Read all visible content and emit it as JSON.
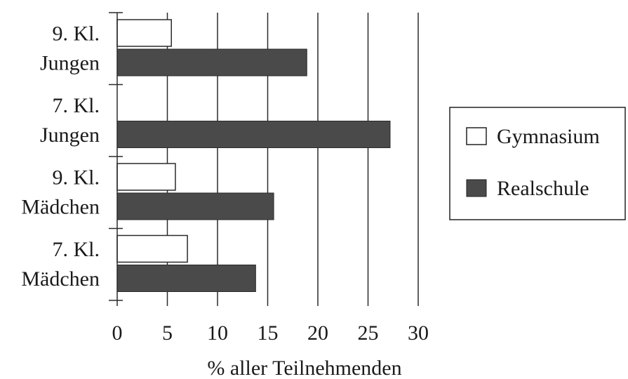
{
  "chart_data": {
    "type": "bar",
    "orientation": "horizontal",
    "categories": [
      [
        "9. Kl.",
        "Jungen"
      ],
      [
        "7. Kl.",
        "Jungen"
      ],
      [
        "9. Kl.",
        "Mädchen"
      ],
      [
        "7. Kl.",
        "Mädchen"
      ]
    ],
    "series": [
      {
        "name": "Gymnasium",
        "color": "#ffffff",
        "values": [
          5.4,
          0,
          5.8,
          7.0
        ]
      },
      {
        "name": "Realschule",
        "color": "#4a4a4a",
        "values": [
          18.9,
          27.2,
          15.6,
          13.8
        ]
      }
    ],
    "xlabel": "% aller Teilnehmenden",
    "xlim": [
      0,
      30
    ],
    "xticks": [
      0,
      5,
      10,
      15,
      20,
      25,
      30
    ],
    "grid": true,
    "legend_position": "right"
  }
}
